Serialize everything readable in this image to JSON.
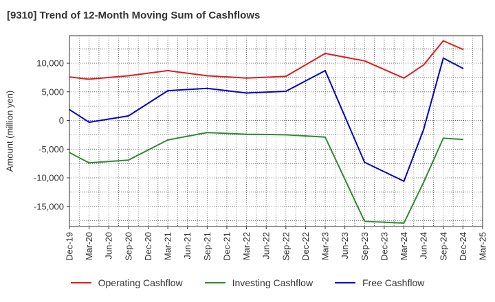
{
  "chart_data": {
    "type": "line",
    "title": "[9310]  Trend of 12-Month Moving Sum of Cashflows",
    "xlabel": "",
    "ylabel": "Amount (million yen)",
    "categories": [
      "Dec-19",
      "Mar-20",
      "Jun-20",
      "Sep-20",
      "Dec-20",
      "Mar-21",
      "Jun-21",
      "Sep-21",
      "Dec-21",
      "Mar-22",
      "Jun-22",
      "Sep-22",
      "Dec-22",
      "Mar-23",
      "Jun-23",
      "Sep-23",
      "Dec-23",
      "Mar-24",
      "Jun-24",
      "Sep-24",
      "Dec-24",
      "Mar-25"
    ],
    "ylim": [
      -18500,
      14800
    ],
    "yticks": [
      -15000,
      -10000,
      -5000,
      0,
      5000,
      10000
    ],
    "ytick_labels": [
      "-15,000",
      "-10,000",
      "-5,000",
      "0",
      "5,000",
      "10,000"
    ],
    "grid": true,
    "legend_position": "bottom",
    "series": [
      {
        "name": "Operating Cashflow",
        "color": "#e41a1c",
        "points": [
          {
            "x": "Dec-19",
            "y": 7600
          },
          {
            "x": "Mar-20",
            "y": 7200
          },
          {
            "x": "Sep-20",
            "y": 7800
          },
          {
            "x": "Mar-21",
            "y": 8700
          },
          {
            "x": "Sep-21",
            "y": 7800
          },
          {
            "x": "Mar-22",
            "y": 7400
          },
          {
            "x": "Sep-22",
            "y": 7700
          },
          {
            "x": "Mar-23",
            "y": 11700
          },
          {
            "x": "Sep-23",
            "y": 10400
          },
          {
            "x": "Mar-24",
            "y": 7400
          },
          {
            "x": "Jun-24",
            "y": 9700
          },
          {
            "x": "Sep-24",
            "y": 13900
          },
          {
            "x": "Dec-24",
            "y": 12400
          }
        ]
      },
      {
        "name": "Investing Cashflow",
        "color": "#2e8b2e",
        "points": [
          {
            "x": "Dec-19",
            "y": -5600
          },
          {
            "x": "Mar-20",
            "y": -7400
          },
          {
            "x": "Sep-20",
            "y": -6900
          },
          {
            "x": "Mar-21",
            "y": -3400
          },
          {
            "x": "Sep-21",
            "y": -2100
          },
          {
            "x": "Mar-22",
            "y": -2400
          },
          {
            "x": "Sep-22",
            "y": -2500
          },
          {
            "x": "Mar-23",
            "y": -2900
          },
          {
            "x": "Sep-23",
            "y": -17600
          },
          {
            "x": "Mar-24",
            "y": -17900
          },
          {
            "x": "Jun-24",
            "y": -10800
          },
          {
            "x": "Sep-24",
            "y": -3100
          },
          {
            "x": "Dec-24",
            "y": -3300
          }
        ]
      },
      {
        "name": "Free Cashflow",
        "color": "#0000cc",
        "points": [
          {
            "x": "Dec-19",
            "y": 1900
          },
          {
            "x": "Mar-20",
            "y": -300
          },
          {
            "x": "Sep-20",
            "y": 800
          },
          {
            "x": "Mar-21",
            "y": 5200
          },
          {
            "x": "Sep-21",
            "y": 5600
          },
          {
            "x": "Mar-22",
            "y": 4800
          },
          {
            "x": "Sep-22",
            "y": 5100
          },
          {
            "x": "Mar-23",
            "y": 8700
          },
          {
            "x": "Sep-23",
            "y": -7300
          },
          {
            "x": "Mar-24",
            "y": -10600
          },
          {
            "x": "Jun-24",
            "y": -1600
          },
          {
            "x": "Sep-24",
            "y": 10900
          },
          {
            "x": "Dec-24",
            "y": 9100
          }
        ]
      }
    ]
  }
}
